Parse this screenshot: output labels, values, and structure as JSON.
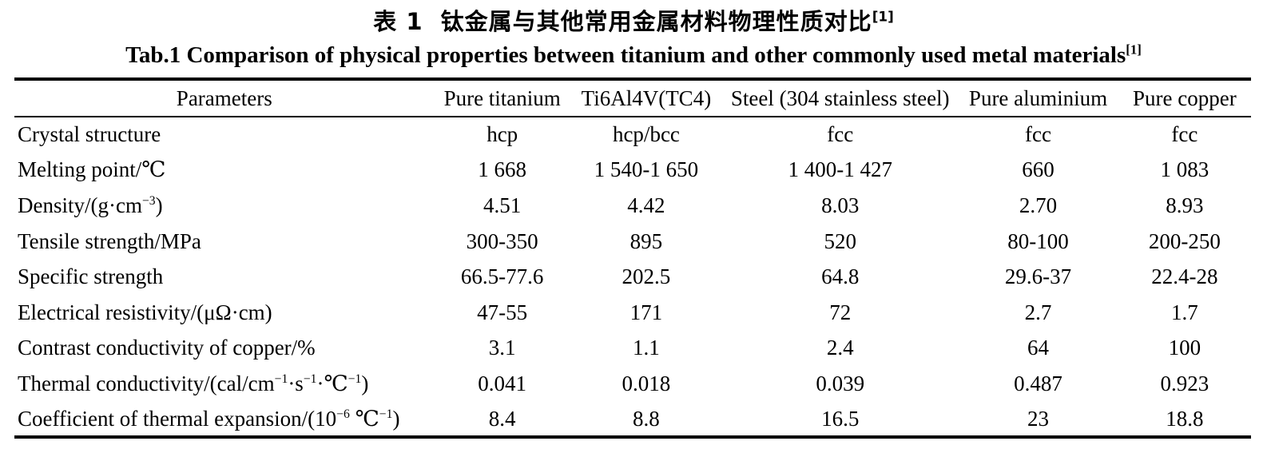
{
  "page": {
    "background_color": "#ffffff",
    "text_color": "#000000"
  },
  "titles": {
    "chinese": "表 1  钛金属与其他常用金属材料物理性质对比^{[1]}",
    "english": "Tab.1 Comparison of physical properties between titanium and other commonly used metal materials^{[1]}"
  },
  "table": {
    "columns": [
      "Parameters",
      "Pure titanium",
      "Ti6Al4V(TC4)",
      "Steel (304 stainless steel)",
      "Pure aluminium",
      "Pure copper"
    ],
    "rows": [
      [
        "Crystal structure",
        "hcp",
        "hcp/bcc",
        "fcc",
        "fcc",
        "fcc"
      ],
      [
        "Melting point/℃",
        "1 668",
        "1 540-1 650",
        "1 400-1 427",
        "660",
        "1 083"
      ],
      [
        "Density/(g·cm^{−3})",
        "4.51",
        "4.42",
        "8.03",
        "2.70",
        "8.93"
      ],
      [
        "Tensile strength/MPa",
        "300-350",
        "895",
        "520",
        "80-100",
        "200-250"
      ],
      [
        "Specific strength",
        "66.5-77.6",
        "202.5",
        "64.8",
        "29.6-37",
        "22.4-28"
      ],
      [
        "Electrical resistivity/(μΩ·cm)",
        "47-55",
        "171",
        "72",
        "2.7",
        "1.7"
      ],
      [
        "Contrast conductivity of copper/%",
        "3.1",
        "1.1",
        "2.4",
        "64",
        "100"
      ],
      [
        "Thermal conductivity/(cal/cm^{−1}·s^{−1}·℃^{−1})",
        "0.041",
        "0.018",
        "0.039",
        "0.487",
        "0.923"
      ],
      [
        "Coefficient of thermal expansion/(10^{−6} ℃^{−1})",
        "8.4",
        "8.8",
        "16.5",
        "23",
        "18.8"
      ]
    ]
  },
  "chart_data": {
    "type": "table",
    "title": "Tab.1 Comparison of physical properties between titanium and other commonly used metal materials",
    "title_chinese": "表 1 钛金属与其他常用金属材料物理性质对比",
    "citation_superscript": "[1]",
    "columns": [
      "Parameters",
      "Pure titanium",
      "Ti6Al4V(TC4)",
      "Steel (304 stainless steel)",
      "Pure aluminium",
      "Pure copper"
    ],
    "rows": [
      {
        "parameter": "Crystal structure",
        "values": [
          "hcp",
          "hcp/bcc",
          "fcc",
          "fcc",
          "fcc"
        ]
      },
      {
        "parameter": "Melting point/℃",
        "values": [
          "1 668",
          "1 540-1 650",
          "1 400-1 427",
          "660",
          "1 083"
        ]
      },
      {
        "parameter": "Density/(g·cm−3)",
        "values": [
          "4.51",
          "4.42",
          "8.03",
          "2.70",
          "8.93"
        ]
      },
      {
        "parameter": "Tensile strength/MPa",
        "values": [
          "300-350",
          "895",
          "520",
          "80-100",
          "200-250"
        ]
      },
      {
        "parameter": "Specific strength",
        "values": [
          "66.5-77.6",
          "202.5",
          "64.8",
          "29.6-37",
          "22.4-28"
        ]
      },
      {
        "parameter": "Electrical resistivity/(μΩ·cm)",
        "values": [
          "47-55",
          "171",
          "72",
          "2.7",
          "1.7"
        ]
      },
      {
        "parameter": "Contrast conductivity of copper/%",
        "values": [
          "3.1",
          "1.1",
          "2.4",
          "64",
          "100"
        ]
      },
      {
        "parameter": "Thermal conductivity/(cal/cm−1·s−1·℃−1)",
        "values": [
          "0.041",
          "0.018",
          "0.039",
          "0.487",
          "0.923"
        ]
      },
      {
        "parameter": "Coefficient of thermal expansion/(10−6 ℃−1)",
        "values": [
          "8.4",
          "8.8",
          "16.5",
          "23",
          "18.8"
        ]
      }
    ]
  }
}
